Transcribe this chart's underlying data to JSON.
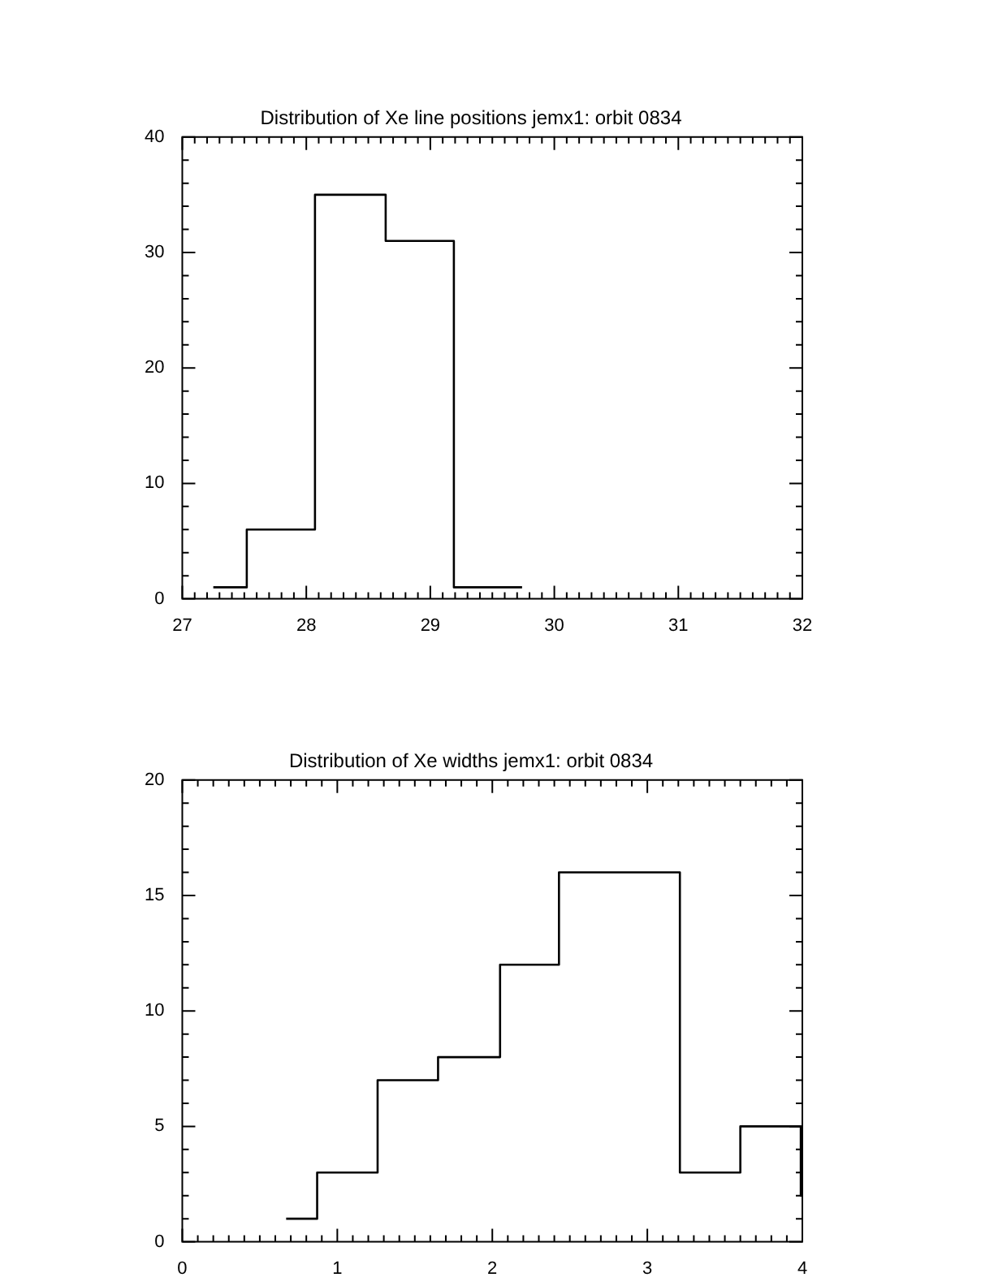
{
  "chart_data": [
    {
      "type": "histogram",
      "title": "Distribution of Xe line positions jemx1: orbit 0834",
      "bins": [
        27.25,
        27.52,
        28.07,
        28.64,
        29.19,
        29.74
      ],
      "values": [
        1,
        6,
        35,
        31,
        1
      ],
      "color": "#000000",
      "xlim": [
        27,
        32
      ],
      "xticks": [
        27,
        28,
        29,
        30,
        31,
        32
      ],
      "ylim": [
        0,
        40
      ],
      "yticks": [
        0,
        10,
        20,
        30,
        40
      ]
    },
    {
      "type": "histogram",
      "title": "Distribution of Xe widths jemx1: orbit 0834",
      "bins": [
        0.67,
        0.87,
        1.26,
        1.65,
        2.05,
        2.43,
        3.21,
        3.6,
        3.99,
        4.0
      ],
      "values": [
        1,
        3,
        7,
        8,
        12,
        16,
        3,
        5,
        2
      ],
      "color": "#000000",
      "xlim": [
        0,
        4
      ],
      "xticks": [
        0,
        1,
        2,
        3,
        4
      ],
      "ylim": [
        0,
        20
      ],
      "yticks": [
        0,
        5,
        10,
        15,
        20
      ]
    }
  ]
}
